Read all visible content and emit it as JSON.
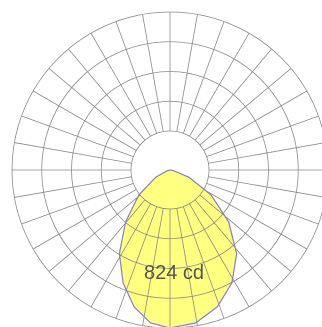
{
  "chart_data": {
    "type": "polar",
    "title": "",
    "annotation": "824 cd",
    "max_intensity_cd": 824,
    "radial_grid_rings": 4,
    "angular_grid_step_deg": 10,
    "grid": true,
    "legend": "none",
    "series": [
      {
        "name": "",
        "fill_color": "#ffff80",
        "line_color": "#8080c8",
        "angles_deg": [
          0,
          10,
          20,
          30,
          40,
          50,
          60,
          70,
          80,
          90
        ],
        "intensity_cd": [
          824,
          810,
          760,
          680,
          570,
          420,
          260,
          110,
          20,
          0
        ]
      }
    ]
  }
}
